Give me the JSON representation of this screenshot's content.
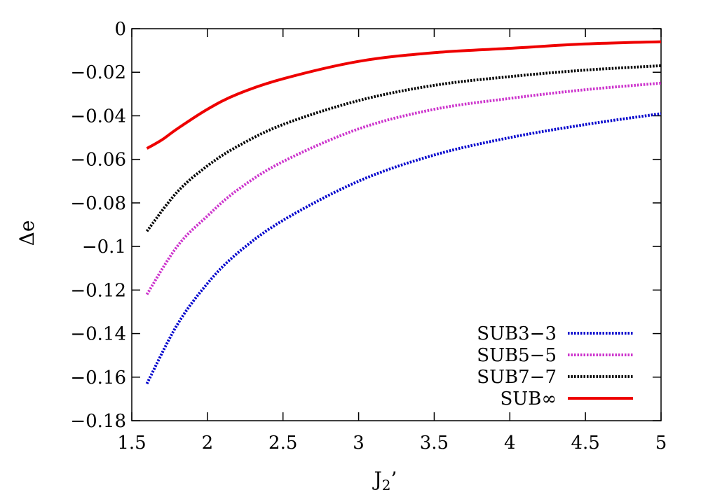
{
  "chart_data": {
    "type": "line",
    "title": "",
    "xlabel": "J",
    "xlabel_sub": "2",
    "xlabel_suffix": "’",
    "ylabel": "Δe",
    "xlim": [
      1.5,
      5
    ],
    "ylim": [
      -0.18,
      0
    ],
    "xticks": [
      1.5,
      2,
      2.5,
      3,
      3.5,
      4,
      4.5,
      5
    ],
    "xtick_labels": [
      "1.5",
      "2",
      "2.5",
      "3",
      "3.5",
      "4",
      "4.5",
      "5"
    ],
    "yticks": [
      0,
      -0.02,
      -0.04,
      -0.06,
      -0.08,
      -0.1,
      -0.12,
      -0.14,
      -0.16,
      -0.18
    ],
    "ytick_labels": [
      "0",
      "−0.02",
      "−0.04",
      "−0.06",
      "−0.08",
      "−0.1",
      "−0.12",
      "−0.14",
      "−0.16",
      "−0.18"
    ],
    "grid": false,
    "legend_position": "bottom-right",
    "series": [
      {
        "name": "SUB3−3",
        "color": "#0000cc",
        "style": "dotted",
        "x": [
          1.6,
          1.8,
          2.0,
          2.2,
          2.5,
          3.0,
          3.5,
          4.0,
          4.5,
          5.0
        ],
        "y": [
          -0.163,
          -0.136,
          -0.117,
          -0.103,
          -0.088,
          -0.07,
          -0.058,
          -0.05,
          -0.044,
          -0.039
        ]
      },
      {
        "name": "SUB5−5",
        "color": "#cc33cc",
        "style": "dotted",
        "x": [
          1.6,
          1.8,
          2.0,
          2.2,
          2.5,
          3.0,
          3.5,
          4.0,
          4.5,
          5.0
        ],
        "y": [
          -0.122,
          -0.1,
          -0.086,
          -0.074,
          -0.061,
          -0.046,
          -0.037,
          -0.032,
          -0.028,
          -0.025
        ]
      },
      {
        "name": "SUB7−7",
        "color": "#000000",
        "style": "dotted",
        "x": [
          1.6,
          1.8,
          2.0,
          2.2,
          2.5,
          3.0,
          3.5,
          4.0,
          4.5,
          5.0
        ],
        "y": [
          -0.093,
          -0.075,
          -0.063,
          -0.054,
          -0.044,
          -0.033,
          -0.026,
          -0.022,
          -0.019,
          -0.017
        ]
      },
      {
        "name": "SUB∞",
        "color": "#ee0000",
        "style": "solid",
        "x": [
          1.6,
          1.7,
          1.8,
          2.0,
          2.2,
          2.5,
          3.0,
          3.5,
          4.0,
          4.5,
          5.0
        ],
        "y": [
          -0.055,
          -0.051,
          -0.046,
          -0.037,
          -0.03,
          -0.023,
          -0.015,
          -0.011,
          -0.009,
          -0.007,
          -0.006
        ]
      }
    ]
  }
}
